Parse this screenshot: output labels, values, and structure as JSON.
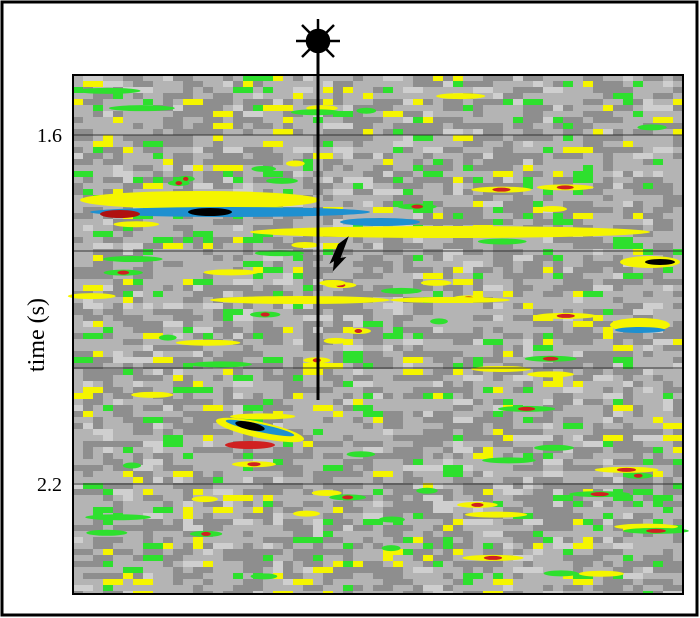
{
  "axis": {
    "label": "time (s)",
    "ticks": [
      "1.6",
      "2.2"
    ]
  }
}
